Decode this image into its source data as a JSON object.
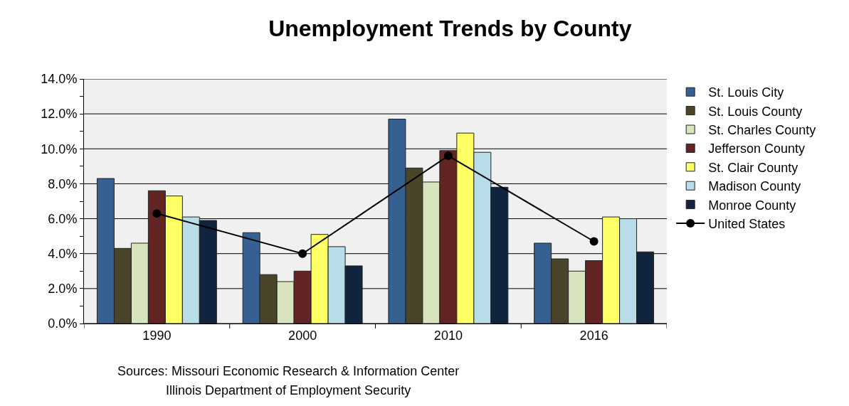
{
  "chart_data": {
    "type": "bar",
    "title": "Unemployment Trends by County",
    "categories": [
      "1990",
      "2000",
      "2010",
      "2016"
    ],
    "series": [
      {
        "name": "St. Louis City",
        "color": "#366092",
        "values": [
          8.3,
          5.2,
          11.7,
          4.6
        ]
      },
      {
        "name": "St. Louis County",
        "color": "#4a452a",
        "values": [
          4.3,
          2.8,
          8.9,
          3.7
        ]
      },
      {
        "name": "St. Charles County",
        "color": "#d8e4bc",
        "values": [
          4.6,
          2.4,
          8.1,
          3.0
        ]
      },
      {
        "name": "Jefferson County",
        "color": "#632523",
        "values": [
          7.6,
          3.0,
          9.9,
          3.6
        ]
      },
      {
        "name": "St. Clair County",
        "color": "#ffff66",
        "values": [
          7.3,
          5.1,
          10.9,
          6.1
        ]
      },
      {
        "name": "Madison County",
        "color": "#b7dee8",
        "values": [
          6.1,
          4.4,
          9.8,
          6.0
        ]
      },
      {
        "name": "Monroe County",
        "color": "#10243e",
        "values": [
          5.9,
          3.3,
          7.8,
          4.1
        ]
      },
      {
        "name": "United States",
        "type": "line",
        "color": "#000000",
        "marker": "circle",
        "values": [
          6.3,
          4.0,
          9.6,
          4.7
        ]
      }
    ],
    "ylim": [
      0,
      14
    ],
    "yticks": [
      {
        "value": 0,
        "label": "0.0%"
      },
      {
        "value": 1,
        "label": null
      },
      {
        "value": 2,
        "label": "2.0%"
      },
      {
        "value": 3,
        "label": null
      },
      {
        "value": 4,
        "label": "4.0%"
      },
      {
        "value": 5,
        "label": null
      },
      {
        "value": 6,
        "label": "6.0%"
      },
      {
        "value": 7,
        "label": null
      },
      {
        "value": 8,
        "label": "8.0%"
      },
      {
        "value": 9,
        "label": null
      },
      {
        "value": 10,
        "label": "10.0%"
      },
      {
        "value": 11,
        "label": null
      },
      {
        "value": 12,
        "label": "12.0%"
      },
      {
        "value": 13,
        "label": null
      },
      {
        "value": 14,
        "label": "14.0%"
      }
    ],
    "grid": "y",
    "legend": "right",
    "annotations": [
      "Sources: Missouri Economic Research & Information Center",
      "Illinois Department of Employment Security"
    ]
  }
}
